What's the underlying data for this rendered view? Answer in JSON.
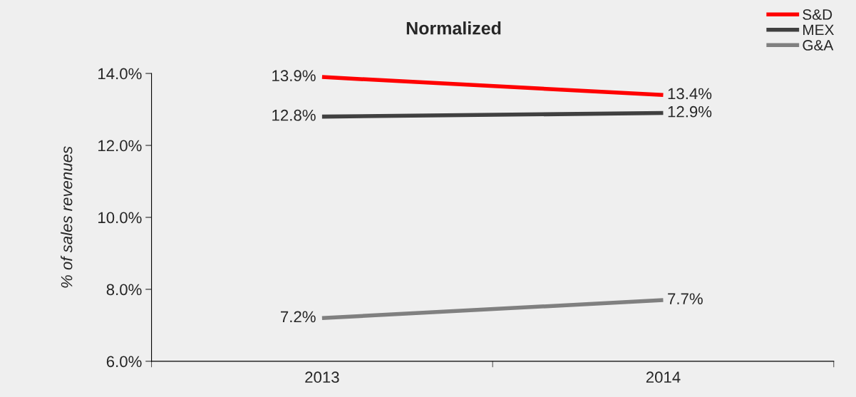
{
  "chart_data": {
    "type": "line",
    "title": "Normalized",
    "ylabel": "% of sales revenues",
    "categories": [
      "2013",
      "2014"
    ],
    "series": [
      {
        "name": "S&D",
        "color": "#ff0000",
        "values": [
          13.9,
          13.4
        ],
        "value_labels": [
          "13.9%",
          "13.4%"
        ]
      },
      {
        "name": "MEX",
        "color": "#404040",
        "values": [
          12.8,
          12.9
        ],
        "value_labels": [
          "12.8%",
          "12.9%"
        ]
      },
      {
        "name": "G&A",
        "color": "#808080",
        "values": [
          7.2,
          7.7
        ],
        "value_labels": [
          "7.2%",
          "7.7%"
        ]
      }
    ],
    "ylim": [
      6,
      14
    ],
    "yticks": [
      {
        "value": 6,
        "label": "6.0%"
      },
      {
        "value": 8,
        "label": "8.0%"
      },
      {
        "value": 10,
        "label": "10.0%"
      },
      {
        "value": 12,
        "label": "12.0%"
      },
      {
        "value": 14,
        "label": "14.0%"
      }
    ],
    "grid": false,
    "legend": "top right",
    "marker": "none",
    "line_style": "solid"
  }
}
